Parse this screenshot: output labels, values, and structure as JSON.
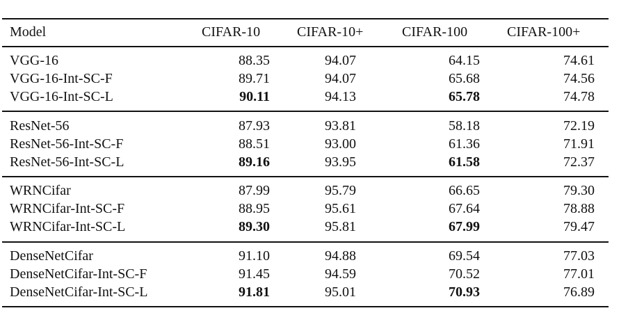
{
  "table": {
    "headers": [
      "Model",
      "CIFAR-10",
      "CIFAR-10+",
      "CIFAR-100",
      "CIFAR-100+"
    ],
    "groups": [
      {
        "rows": [
          {
            "model": "VGG-16",
            "values": [
              "88.35",
              "94.07",
              "64.15",
              "74.61"
            ],
            "bold": [
              false,
              false,
              false,
              false
            ]
          },
          {
            "model": "VGG-16-Int-SC-F",
            "values": [
              "89.71",
              "94.07",
              "65.68",
              "74.56"
            ],
            "bold": [
              false,
              false,
              false,
              false
            ]
          },
          {
            "model": "VGG-16-Int-SC-L",
            "values": [
              "90.11",
              "94.13",
              "65.78",
              "74.78"
            ],
            "bold": [
              true,
              false,
              true,
              false
            ]
          }
        ]
      },
      {
        "rows": [
          {
            "model": "ResNet-56",
            "values": [
              "87.93",
              "93.81",
              "58.18",
              "72.19"
            ],
            "bold": [
              false,
              false,
              false,
              false
            ]
          },
          {
            "model": "ResNet-56-Int-SC-F",
            "values": [
              "88.51",
              "93.00",
              "61.36",
              "71.91"
            ],
            "bold": [
              false,
              false,
              false,
              false
            ]
          },
          {
            "model": "ResNet-56-Int-SC-L",
            "values": [
              "89.16",
              "93.95",
              "61.58",
              "72.37"
            ],
            "bold": [
              true,
              false,
              true,
              false
            ]
          }
        ]
      },
      {
        "rows": [
          {
            "model": "WRNCifar",
            "values": [
              "87.99",
              "95.79",
              "66.65",
              "79.30"
            ],
            "bold": [
              false,
              false,
              false,
              false
            ]
          },
          {
            "model": "WRNCifar-Int-SC-F",
            "values": [
              "88.95",
              "95.61",
              "67.64",
              "78.88"
            ],
            "bold": [
              false,
              false,
              false,
              false
            ]
          },
          {
            "model": "WRNCifar-Int-SC-L",
            "values": [
              "89.30",
              "95.81",
              "67.99",
              "79.47"
            ],
            "bold": [
              true,
              false,
              true,
              false
            ]
          }
        ]
      },
      {
        "rows": [
          {
            "model": "DenseNetCifar",
            "values": [
              "91.10",
              "94.88",
              "69.54",
              "77.03"
            ],
            "bold": [
              false,
              false,
              false,
              false
            ]
          },
          {
            "model": "DenseNetCifar-Int-SC-F",
            "values": [
              "91.45",
              "94.59",
              "70.52",
              "77.01"
            ],
            "bold": [
              false,
              false,
              false,
              false
            ]
          },
          {
            "model": "DenseNetCifar-Int-SC-L",
            "values": [
              "91.81",
              "95.01",
              "70.93",
              "76.89"
            ],
            "bold": [
              true,
              false,
              true,
              false
            ]
          }
        ]
      }
    ]
  }
}
